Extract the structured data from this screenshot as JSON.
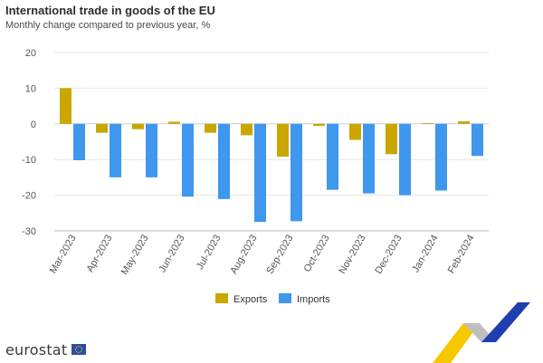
{
  "header": {
    "title": "International trade in goods of the EU",
    "subtitle": "Monthly change compared to previous year, %"
  },
  "brand": {
    "logo_text": "eurostat"
  },
  "colors": {
    "exports": "#c9a600",
    "imports": "#3f97ee",
    "grid": "#e6e6e6"
  },
  "chart_data": {
    "type": "bar",
    "categories": [
      "Mar-2023",
      "Apr-2023",
      "May-2023",
      "Jun-2023",
      "Jul-2023",
      "Aug-2023",
      "Sep-2023",
      "Oct-2023",
      "Nov-2023",
      "Dec-2023",
      "Jan-2024",
      "Feb-2024"
    ],
    "series": [
      {
        "name": "Exports",
        "values": [
          10,
          -2.5,
          -1.5,
          0.6,
          -2.5,
          -3.2,
          -9.2,
          -0.6,
          -4.5,
          -8.5,
          0.2,
          0.7
        ]
      },
      {
        "name": "Imports",
        "values": [
          -10.2,
          -15,
          -15,
          -20.4,
          -21.1,
          -27.5,
          -27.3,
          -18.5,
          -19.5,
          -20,
          -18.7,
          -9
        ]
      }
    ],
    "title": "International trade in goods of the EU",
    "subtitle": "Monthly change compared to previous year, %",
    "xlabel": "",
    "ylabel": "",
    "ylim": [
      -30,
      20
    ],
    "yticks": [
      -30,
      -20,
      -10,
      0,
      10,
      20
    ],
    "grid": true,
    "legend": "bottom-center"
  }
}
